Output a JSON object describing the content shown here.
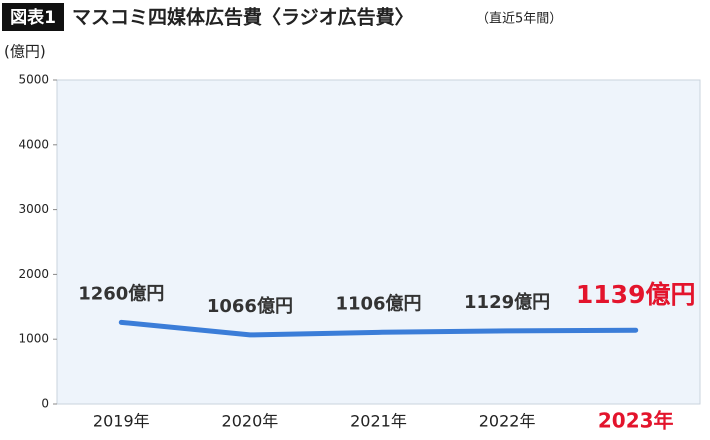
{
  "chart_data": {
    "type": "line",
    "title_badge": "図表1",
    "title": "マスコミ四媒体広告費〈ラジオ広告費〉",
    "subtitle": "（直近5年間）",
    "y_label": "(億円)",
    "categories": [
      "2019年",
      "2020年",
      "2021年",
      "2022年",
      "2023年"
    ],
    "values": [
      1260,
      1066,
      1106,
      1129,
      1139
    ],
    "value_labels": [
      "1260億円",
      "1066億円",
      "1106億円",
      "1129億円",
      "1139億円"
    ],
    "color": "#3b7dd8",
    "highlight_index": 4,
    "highlight_color": "#e3142c",
    "ylim": [
      0,
      5000
    ],
    "yticks": [
      0,
      1000,
      2000,
      3000,
      4000,
      5000
    ],
    "grid": false
  }
}
